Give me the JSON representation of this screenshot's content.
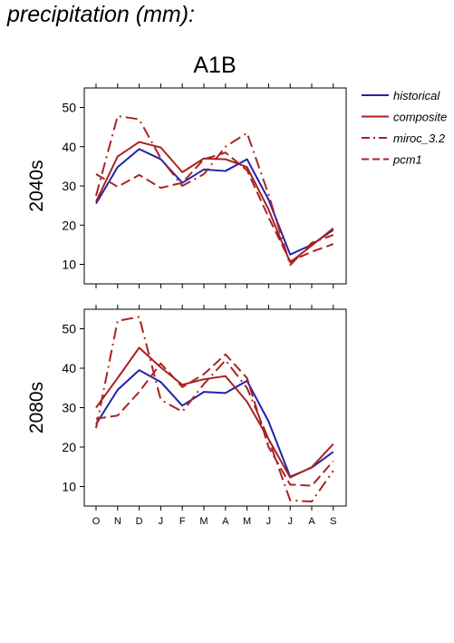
{
  "page_title": "precipitation (mm):",
  "chart_data": {
    "type": "line",
    "title": "A1B",
    "x_ticks": [
      "O",
      "N",
      "D",
      "J",
      "F",
      "M",
      "A",
      "M",
      "J",
      "J",
      "A",
      "S"
    ],
    "yticks": [
      10,
      20,
      30,
      40,
      50
    ],
    "ylim": [
      5,
      55
    ],
    "grid": false,
    "legend_placement": "top-right",
    "legend": [
      {
        "name": "historical",
        "color": "#2222aa",
        "dash": "solid"
      },
      {
        "name": "composite",
        "color": "#aa2222",
        "dash": "solid"
      },
      {
        "name": "miroc_3.2",
        "color": "#aa2222",
        "dash": "dashdot"
      },
      {
        "name": "pcm1",
        "color": "#aa2222",
        "dash": "dashed"
      }
    ],
    "panels": [
      {
        "label": "2040s",
        "series": [
          {
            "name": "historical",
            "values": [
              25.5,
              34.8,
              39.4,
              36.8,
              30.8,
              34.2,
              33.8,
              36.8,
              26.5,
              12.5,
              15.0,
              18.8
            ]
          },
          {
            "name": "composite",
            "values": [
              26.0,
              37.5,
              41.2,
              39.8,
              33.5,
              37.0,
              36.8,
              34.8,
              24.0,
              10.5,
              14.8,
              19.2
            ]
          },
          {
            "name": "miroc_3.2",
            "values": [
              27.5,
              47.8,
              47.0,
              37.0,
              30.0,
              33.0,
              40.0,
              43.5,
              27.8,
              9.8,
              15.5,
              17.5
            ]
          },
          {
            "name": "pcm1",
            "values": [
              33.0,
              29.8,
              32.8,
              29.5,
              30.8,
              36.8,
              38.5,
              34.0,
              22.0,
              10.8,
              13.2,
              15.2
            ]
          }
        ]
      },
      {
        "label": "2080s",
        "series": [
          {
            "name": "historical",
            "values": [
              25.8,
              34.5,
              39.5,
              36.5,
              30.5,
              34.0,
              33.7,
              36.8,
              26.5,
              12.5,
              14.8,
              18.8
            ]
          },
          {
            "name": "composite",
            "values": [
              30.0,
              37.5,
              45.2,
              40.2,
              35.8,
              37.2,
              38.0,
              31.5,
              22.0,
              12.3,
              14.9,
              20.8
            ]
          },
          {
            "name": "miroc_3.2",
            "values": [
              24.8,
              52.0,
              53.0,
              32.0,
              29.0,
              36.0,
              42.0,
              35.0,
              22.0,
              6.5,
              6.2,
              14.0
            ]
          },
          {
            "name": "pcm1",
            "values": [
              27.2,
              28.0,
              34.0,
              41.2,
              35.2,
              38.5,
              43.5,
              37.5,
              20.0,
              10.5,
              10.2,
              16.5
            ]
          }
        ]
      }
    ]
  }
}
